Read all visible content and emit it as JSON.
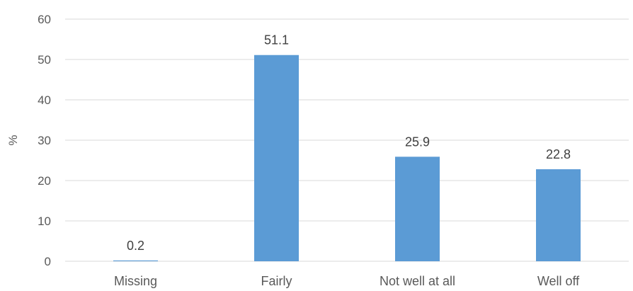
{
  "chart_data": {
    "type": "bar",
    "categories": [
      "Missing",
      "Fairly",
      "Not well at all",
      "Well off"
    ],
    "values": [
      0.2,
      51.1,
      25.9,
      22.8
    ],
    "data_labels": [
      "0.2",
      "51.1",
      "25.9",
      "22.8"
    ],
    "title": "",
    "xlabel": "",
    "ylabel": "%",
    "ylim": [
      0,
      60
    ],
    "yticks": [
      0,
      10,
      20,
      30,
      40,
      50,
      60
    ],
    "grid": true,
    "legend": "none",
    "bar_color": "#5b9bd5"
  }
}
